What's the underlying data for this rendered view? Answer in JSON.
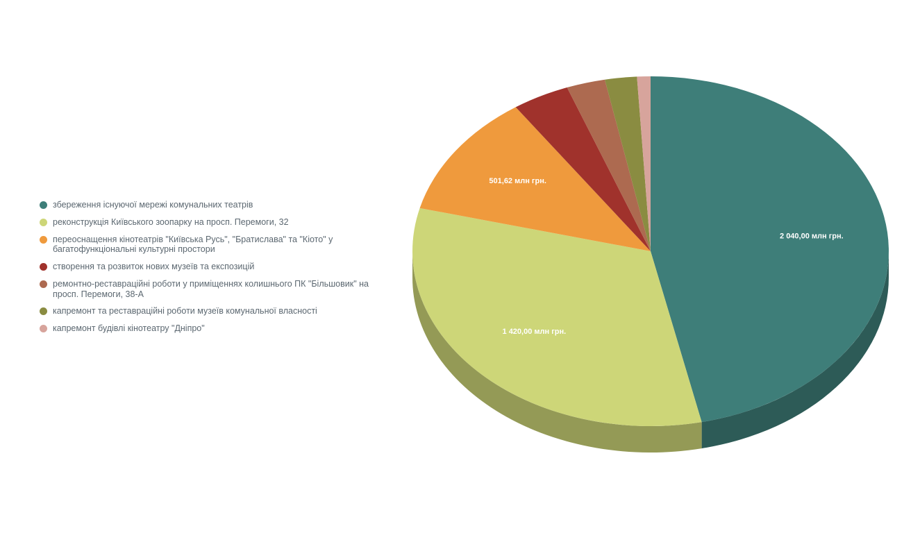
{
  "chart_data": {
    "type": "pie",
    "style": "3d",
    "title": "",
    "unit": "млн грн.",
    "legend_position": "left",
    "start_angle_deg": 0,
    "direction": "clockwise",
    "slices": [
      {
        "label": "збереження існуючої мережі комунальних театрів",
        "value": 2040.0,
        "display": "2 040,00 млн грн.",
        "color": "#3e7e79"
      },
      {
        "label": "реконструкція Київського зоопарку на просп. Перемоги, 32",
        "value": 1420.0,
        "display": "1 420,00 млн грн.",
        "color": "#cdd678"
      },
      {
        "label": "переоснащення кінотеатрів \"Київська Русь\", \"Братислава\" та \"Кіото\" у багатофункціональні культурні простори",
        "value": 501.62,
        "display": "501,62 млн грн.",
        "color": "#ef9a3d"
      },
      {
        "label": "створення та розвиток нових музеїв та експозицій",
        "value": 170,
        "display": "",
        "color": "#a0322c"
      },
      {
        "label": "ремонтно-реставраційні роботи у приміщеннях колишнього ПК \"Більшовик\" на просп. Перемоги, 38-А",
        "value": 115,
        "display": "",
        "color": "#ad6a50"
      },
      {
        "label": "капремонт та реставраційні роботи музеїв комунальної власності",
        "value": 95,
        "display": "",
        "color": "#8a8c41"
      },
      {
        "label": "капремонт будівлі кінотеатру \"Дніпро\"",
        "value": 40,
        "display": "",
        "color": "#d7a49c"
      }
    ]
  }
}
